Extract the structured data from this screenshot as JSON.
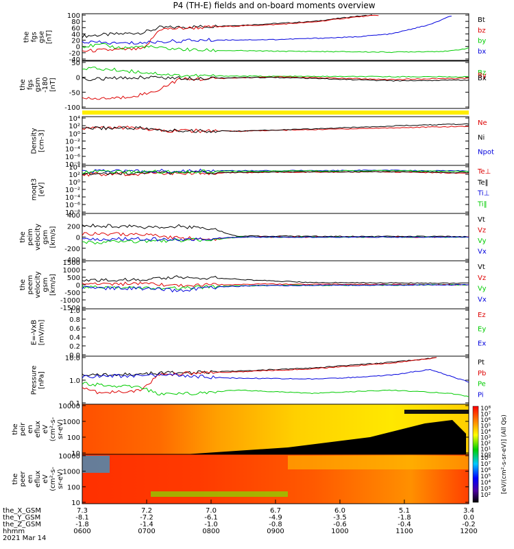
{
  "title": "P4 (TH-E) fields and on-board moments overview",
  "chart_data": [
    {
      "type": "line",
      "ylabel_lines": [
        "the",
        "fgs",
        "gse",
        "[nT]"
      ],
      "yticks": [
        "100",
        "80",
        "60",
        "40",
        "20",
        "0",
        "-20",
        "-40"
      ],
      "ylim": [
        -40,
        100
      ],
      "series": [
        {
          "name": "Bt",
          "color": "#000000",
          "x": [
            0,
            0.05,
            0.1,
            0.16,
            0.2,
            0.3,
            0.4,
            0.5,
            0.6,
            0.7,
            0.75
          ],
          "y": [
            33,
            37,
            40,
            45,
            60,
            63,
            67,
            73,
            80,
            95,
            100
          ]
        },
        {
          "name": "bz",
          "color": "#dd0000",
          "x": [
            0,
            0.05,
            0.1,
            0.16,
            0.2,
            0.3,
            0.4,
            0.5,
            0.6,
            0.7,
            0.77
          ],
          "y": [
            -15,
            -12,
            -10,
            -8,
            55,
            60,
            65,
            70,
            78,
            93,
            100
          ]
        },
        {
          "name": "by",
          "color": "#00cc00",
          "x": [
            0,
            0.05,
            0.1,
            0.16,
            0.2,
            0.3,
            0.5,
            0.8,
            0.95,
            1
          ],
          "y": [
            0,
            5,
            -5,
            0,
            -5,
            -12,
            -15,
            -18,
            -15,
            -5
          ]
        },
        {
          "name": "bx",
          "color": "#0000dd",
          "x": [
            0,
            0.05,
            0.1,
            0.16,
            0.2,
            0.3,
            0.5,
            0.7,
            0.8,
            0.9,
            0.96
          ],
          "y": [
            15,
            12,
            10,
            12,
            15,
            20,
            22,
            30,
            40,
            70,
            100
          ]
        }
      ]
    },
    {
      "type": "line",
      "ylabel_lines": [
        "the",
        "fgs",
        "gsm",
        "-180",
        "[nT]"
      ],
      "yticks": [
        "50",
        "0",
        "-50",
        "-100"
      ],
      "ylim": [
        -115,
        55
      ],
      "series": [
        {
          "name": "Bz",
          "color": "#00cc00",
          "x": [
            0,
            0.1,
            0.18,
            0.25,
            0.5,
            1
          ],
          "y": [
            35,
            25,
            15,
            5,
            2,
            0
          ]
        },
        {
          "name": "By",
          "color": "#dd0000",
          "x": [
            0,
            0.1,
            0.18,
            0.25,
            0.5,
            0.8,
            1
          ],
          "y": [
            -85,
            -80,
            -60,
            -10,
            0,
            -10,
            -5
          ]
        },
        {
          "name": "Bx",
          "color": "#000000",
          "x": [
            0,
            0.1,
            0.18,
            0.25,
            0.5,
            0.8,
            1
          ],
          "y": [
            -10,
            -5,
            0,
            -5,
            -2,
            -15,
            -12
          ]
        }
      ]
    },
    {
      "type": "line",
      "ylabel_lines": [
        "Density",
        "[cm-3]"
      ],
      "yticks": [
        "10⁴",
        "10²",
        "10⁰",
        "10⁻²",
        "10⁻⁴",
        "10⁻⁶",
        "10⁻⁸"
      ],
      "ylim": [
        -9,
        5
      ],
      "series": [
        {
          "name": "Ne",
          "color": "#dd0000",
          "x": [
            0,
            0.15,
            0.2,
            0.4,
            0.6,
            0.8,
            1
          ],
          "y": [
            2.0,
            2.0,
            1.2,
            1.0,
            1.5,
            2.0,
            2.5
          ]
        },
        {
          "name": "Ni",
          "color": "#000000",
          "x": [
            0,
            0.15,
            0.2,
            0.4,
            0.6,
            0.8,
            1
          ],
          "y": [
            2.0,
            2.0,
            1.2,
            1.0,
            1.7,
            2.6,
            3.2
          ]
        },
        {
          "name": "Npot",
          "color": "#0000dd",
          "x": [],
          "y": []
        }
      ]
    },
    {
      "type": "line",
      "ylabel_lines": [
        "moqt3",
        "[eV]"
      ],
      "yticks": [
        "10⁴",
        "10²",
        "10⁰",
        "10⁻²",
        "10⁻⁴",
        "10⁻⁶",
        "10⁻⁸"
      ],
      "ylim": [
        -9,
        5
      ],
      "series": [
        {
          "name": "Te⊥",
          "color": "#dd0000",
          "x": [
            0,
            0.2,
            0.5,
            0.8,
            1
          ],
          "y": [
            2.6,
            2.9,
            3.3,
            3.4,
            3.0
          ]
        },
        {
          "name": "Te‖",
          "color": "#000000",
          "x": [
            0,
            0.2,
            0.5,
            0.8,
            1
          ],
          "y": [
            3.0,
            3.1,
            3.4,
            3.5,
            3.2
          ]
        },
        {
          "name": "Ti⊥",
          "color": "#0000dd",
          "x": [
            0,
            0.2,
            0.5,
            0.8,
            1
          ],
          "y": [
            3.6,
            3.7,
            3.8,
            3.9,
            3.7
          ]
        },
        {
          "name": "Ti‖",
          "color": "#00cc00",
          "x": [
            0,
            0.2,
            0.5,
            0.8,
            1
          ],
          "y": [
            3.4,
            3.5,
            3.7,
            3.8,
            3.6
          ]
        }
      ]
    },
    {
      "type": "line",
      "ylabel_lines": [
        "the",
        "peim",
        "velocity",
        "gsm",
        "[km/s]"
      ],
      "yticks": [
        "400",
        "200",
        "0",
        "-200",
        "-400"
      ],
      "ylim": [
        -400,
        400
      ],
      "series": [
        {
          "name": "Vt",
          "color": "#000000",
          "x": [
            0,
            0.15,
            0.25,
            0.35,
            0.4,
            0.6,
            1
          ],
          "y": [
            220,
            180,
            200,
            120,
            20,
            15,
            10
          ]
        },
        {
          "name": "Vz",
          "color": "#dd0000",
          "x": [
            0,
            0.15,
            0.25,
            0.35,
            0.4,
            1
          ],
          "y": [
            60,
            50,
            -20,
            -30,
            0,
            0
          ]
        },
        {
          "name": "Vy",
          "color": "#00cc00",
          "x": [
            0,
            0.15,
            0.25,
            0.35,
            0.4,
            1
          ],
          "y": [
            -100,
            -80,
            -60,
            -40,
            0,
            0
          ]
        },
        {
          "name": "Vx",
          "color": "#0000dd",
          "x": [
            0,
            0.15,
            0.25,
            0.35,
            0.4,
            1
          ],
          "y": [
            -40,
            -30,
            -50,
            -20,
            0,
            0
          ]
        }
      ]
    },
    {
      "type": "line",
      "ylabel_lines": [
        "the",
        "peem",
        "velocity",
        "gsm",
        "[km/s]"
      ],
      "yticks": [
        "1500",
        "1000",
        "500",
        "0",
        "-500",
        "-1000",
        "-1500"
      ],
      "ylim": [
        -1500,
        1500
      ],
      "series": [
        {
          "name": "Vt",
          "color": "#000000",
          "x": [
            0,
            0.15,
            0.25,
            0.35,
            0.45,
            0.6,
            1
          ],
          "y": [
            300,
            350,
            500,
            450,
            300,
            150,
            100
          ]
        },
        {
          "name": "Vz",
          "color": "#dd0000",
          "x": [
            0,
            0.15,
            0.25,
            0.35,
            0.45,
            1
          ],
          "y": [
            100,
            50,
            -50,
            0,
            50,
            0
          ]
        },
        {
          "name": "Vy",
          "color": "#00cc00",
          "x": [
            0,
            0.15,
            0.25,
            0.35,
            0.45,
            1
          ],
          "y": [
            -150,
            -200,
            -250,
            -100,
            -50,
            0
          ]
        },
        {
          "name": "Vx",
          "color": "#0000dd",
          "x": [
            0,
            0.15,
            0.25,
            0.35,
            0.45,
            1
          ],
          "y": [
            -200,
            -250,
            -400,
            -150,
            -50,
            0
          ]
        }
      ]
    },
    {
      "type": "line",
      "ylabel_lines": [
        "E=-VxB",
        "[mV/m]"
      ],
      "yticks": [
        "1.0",
        "0.8",
        "0.6",
        "0.4",
        "0.2",
        "0.0"
      ],
      "ylim": [
        0,
        1
      ],
      "series": [
        {
          "name": "Ez",
          "color": "#dd0000",
          "x": [],
          "y": []
        },
        {
          "name": "Ey",
          "color": "#00cc00",
          "x": [],
          "y": []
        },
        {
          "name": "Ex",
          "color": "#0000dd",
          "x": [],
          "y": []
        }
      ]
    },
    {
      "type": "line",
      "ylabel_lines": [
        "Pressure",
        "[nPa]"
      ],
      "yticks": [
        "10.0",
        "1.0",
        "0.1"
      ],
      "ylim": [
        -1.5,
        1.35
      ],
      "series": [
        {
          "name": "Pt",
          "color": "#000000",
          "x": [
            0,
            0.2,
            0.4,
            0.6,
            0.8,
            0.92
          ],
          "y": [
            0.25,
            0.35,
            0.5,
            0.7,
            1.05,
            1.35
          ]
        },
        {
          "name": "Pb",
          "color": "#dd0000",
          "x": [
            0,
            0.05,
            0.15,
            0.2,
            0.4,
            0.6,
            0.8,
            0.92
          ],
          "y": [
            -0.6,
            -0.9,
            -0.7,
            0.3,
            0.45,
            0.65,
            1.0,
            1.35
          ]
        },
        {
          "name": "Pe",
          "color": "#00cc00",
          "x": [
            0,
            0.15,
            0.2,
            0.3,
            0.4,
            0.6,
            0.8,
            0.95,
            1
          ],
          "y": [
            -0.3,
            -0.5,
            -1.0,
            -0.9,
            -0.7,
            -0.9,
            -0.7,
            -0.9,
            -1.1
          ]
        },
        {
          "name": "Pi",
          "color": "#0000dd",
          "x": [
            0,
            0.2,
            0.4,
            0.6,
            0.7,
            0.8,
            0.9,
            1
          ],
          "y": [
            0.15,
            0.25,
            0.05,
            0.0,
            0.1,
            0.25,
            0.6,
            -0.2
          ]
        }
      ]
    },
    {
      "type": "heatmap",
      "ylabel_lines": [
        "the",
        "peir",
        "en",
        "eflux",
        "eV",
        "(cm²-s-",
        "sr-eV)"
      ],
      "yticks": [
        "10000",
        "1000",
        "100",
        "10"
      ]
    },
    {
      "type": "heatmap",
      "ylabel_lines": [
        "the",
        "peer",
        "en",
        "eflux",
        "eV",
        "(cm²-s-",
        "sr-eV)"
      ],
      "yticks": [
        "10000",
        "1000",
        "100",
        "10"
      ]
    }
  ],
  "colorbar": {
    "labels": [
      "10⁸",
      "10⁷",
      "10⁶",
      "10⁵",
      "10⁴",
      "10³",
      "10²",
      "10¹",
      "10⁰"
    ],
    "labels2": [
      "10⁸",
      "10⁷",
      "10⁶",
      "10⁵",
      "10⁴",
      "10³",
      "10²"
    ],
    "title": "[eV/(cm²-s-sr-eV)] (All Qs)"
  },
  "xaxis": {
    "row_labels": [
      "the_X_GSM",
      "the_Y_GSM",
      "the_Z_GSM",
      "hhmm"
    ],
    "date": "2021 Mar 14",
    "columns": [
      {
        "x": "7.3",
        "y": "-8.1",
        "z": "-1.8",
        "t": "0600"
      },
      {
        "x": "7.2",
        "y": "-7.2",
        "z": "-1.4",
        "t": "0700"
      },
      {
        "x": "7.0",
        "y": "-6.1",
        "z": "-1.0",
        "t": "0800"
      },
      {
        "x": "6.7",
        "y": "-4.9",
        "z": "-0.8",
        "t": "0900"
      },
      {
        "x": "6.0",
        "y": "-3.5",
        "z": "-0.6",
        "t": "1000"
      },
      {
        "x": "5.1",
        "y": "-1.8",
        "z": "-0.4",
        "t": "1100"
      },
      {
        "x": "3.4",
        "y": "0.0",
        "z": "-0.2",
        "t": "1200"
      }
    ]
  }
}
